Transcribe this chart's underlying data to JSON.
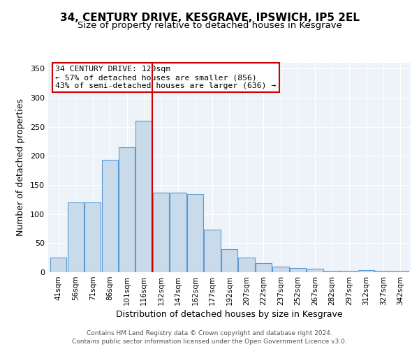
{
  "title1": "34, CENTURY DRIVE, KESGRAVE, IPSWICH, IP5 2EL",
  "title2": "Size of property relative to detached houses in Kesgrave",
  "xlabel": "Distribution of detached houses by size in Kesgrave",
  "ylabel": "Number of detached properties",
  "bar_labels": [
    "41sqm",
    "56sqm",
    "71sqm",
    "86sqm",
    "101sqm",
    "116sqm",
    "132sqm",
    "147sqm",
    "162sqm",
    "177sqm",
    "192sqm",
    "207sqm",
    "222sqm",
    "237sqm",
    "252sqm",
    "267sqm",
    "282sqm",
    "297sqm",
    "312sqm",
    "327sqm",
    "342sqm"
  ],
  "bar_values": [
    25,
    120,
    120,
    193,
    215,
    260,
    137,
    137,
    135,
    73,
    40,
    25,
    16,
    10,
    7,
    6,
    3,
    3,
    4,
    3,
    3
  ],
  "bar_color": "#c9daea",
  "bar_edge_color": "#5b9bd5",
  "vline_x": 5.5,
  "vline_color": "#cc0000",
  "annotation_text": "34 CENTURY DRIVE: 120sqm\n← 57% of detached houses are smaller (856)\n43% of semi-detached houses are larger (636) →",
  "annotation_box_color": "#ffffff",
  "annotation_box_edge": "#cc0000",
  "ylim": [
    0,
    360
  ],
  "yticks": [
    0,
    50,
    100,
    150,
    200,
    250,
    300,
    350
  ],
  "footer1": "Contains HM Land Registry data © Crown copyright and database right 2024.",
  "footer2": "Contains public sector information licensed under the Open Government Licence v3.0.",
  "bg_color": "#eef3f9",
  "title1_fontsize": 11,
  "title2_fontsize": 9.5,
  "annotation_fontsize": 8.2,
  "footer_fontsize": 6.5,
  "axis_label_fontsize": 9,
  "tick_fontsize": 7.5,
  "ytick_fontsize": 8
}
